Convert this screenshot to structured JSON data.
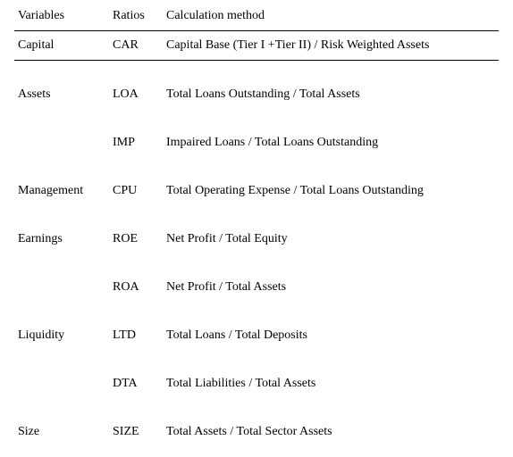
{
  "headers": {
    "variables": "Variables",
    "ratios": "Ratios",
    "method": "Calculation method"
  },
  "rows": [
    {
      "variable": "Capital",
      "ratio": "CAR",
      "method": "Capital Base (Tier I +Tier II) / Risk Weighted Assets"
    },
    {
      "variable": "Assets",
      "ratio": "LOA",
      "method": "Total Loans Outstanding / Total Assets"
    },
    {
      "variable": "",
      "ratio": "IMP",
      "method": "Impaired Loans / Total Loans Outstanding"
    },
    {
      "variable": "Management",
      "ratio": "CPU",
      "method": "Total Operating Expense / Total Loans Outstanding"
    },
    {
      "variable": "Earnings",
      "ratio": "ROE",
      "method": "Net Profit / Total Equity"
    },
    {
      "variable": "",
      "ratio": "ROA",
      "method": "Net Profit / Total Assets"
    },
    {
      "variable": "Liquidity",
      "ratio": "LTD",
      "method": "Total Loans / Total Deposits"
    },
    {
      "variable": "",
      "ratio": "DTA",
      "method": "Total Liabilities / Total Assets"
    },
    {
      "variable": "Size",
      "ratio": "SIZE",
      "method": "Total Assets / Total Sector Assets"
    }
  ]
}
